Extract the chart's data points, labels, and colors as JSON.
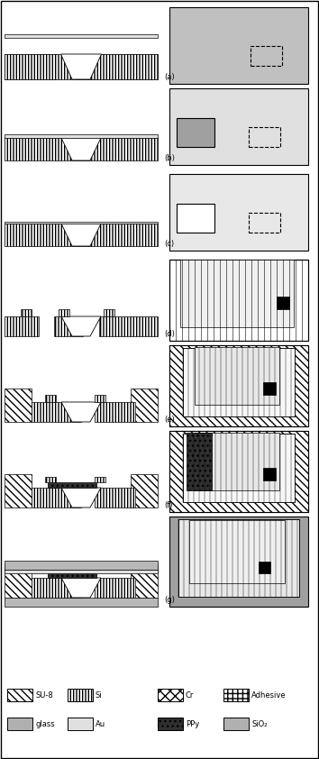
{
  "fig_width": 3.54,
  "fig_height": 8.42,
  "dpi": 100,
  "background": "#ffffff",
  "colors": {
    "su8": "#ffffff",
    "su8_hatch": "\\\\",
    "si": "#ffffff",
    "si_hatch": "|||",
    "cr": "#ffffff",
    "cr_hatch": "xx",
    "adhesive": "#ffffff",
    "adhesive_hatch": "++",
    "glass": "#c0c0c0",
    "au": "#e8e8e8",
    "ppy": "#404040",
    "sio2": "#b0b0b0",
    "right_bg": "#c8c8c8",
    "right_inner": "#e8e8e8"
  },
  "labels": {
    "a": "(a)",
    "b": "(b)",
    "c": "(c)",
    "d": "(d)",
    "e": "(e)",
    "f": "(f)",
    "g": "(g)"
  },
  "legend": [
    {
      "label": "SU-8",
      "hatch": "\\\\\\\\",
      "fc": "white",
      "ec": "black"
    },
    {
      "label": "Si",
      "hatch": "||||",
      "fc": "white",
      "ec": "black"
    },
    {
      "label": "Cr",
      "hatch": "xx",
      "fc": "white",
      "ec": "black"
    },
    {
      "label": "Adhesive",
      "hatch": "++",
      "fc": "white",
      "ec": "black"
    },
    {
      "label": "glass",
      "hatch": "",
      "fc": "#b0b0b0",
      "ec": "black"
    },
    {
      "label": "Au",
      "hatch": "",
      "fc": "#e0e0e0",
      "ec": "black"
    },
    {
      "label": "PPy",
      "hatch": "..",
      "fc": "#404040",
      "ec": "black"
    },
    {
      "label": "SiO₂",
      "hatch": "",
      "fc": "#b8b8b8",
      "ec": "black"
    }
  ]
}
